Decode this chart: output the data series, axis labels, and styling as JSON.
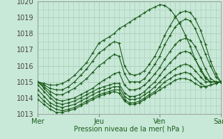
{
  "xlabel": "Pression niveau de la mer( hPa )",
  "xlim": [
    0,
    3
  ],
  "ylim": [
    1013,
    1020
  ],
  "yticks": [
    1013,
    1014,
    1015,
    1016,
    1017,
    1018,
    1019,
    1020
  ],
  "xtick_labels": [
    "Mer",
    "Jeu",
    "Ven",
    "Sam"
  ],
  "xtick_pos": [
    0,
    1,
    2,
    3
  ],
  "bg_color": "#c8e8d8",
  "grid_color": "#a8cdb8",
  "line_color": "#1a5c1a",
  "series": [
    {
      "x": [
        0.0,
        0.1,
        0.2,
        0.3,
        0.4,
        0.5,
        0.6,
        0.7,
        0.8,
        0.9,
        1.0,
        1.08,
        1.17,
        1.25,
        1.33,
        1.42,
        1.5,
        1.58,
        1.67,
        1.75,
        1.83,
        1.92,
        2.0,
        2.08,
        2.17,
        2.25,
        2.33,
        2.42,
        2.5,
        2.58,
        2.67,
        2.75,
        2.83,
        2.92,
        3.0
      ],
      "y": [
        1015.0,
        1014.9,
        1014.8,
        1014.8,
        1014.9,
        1015.1,
        1015.4,
        1015.8,
        1016.2,
        1016.8,
        1017.4,
        1017.6,
        1017.8,
        1018.0,
        1018.3,
        1018.5,
        1018.7,
        1018.9,
        1019.1,
        1019.3,
        1019.5,
        1019.65,
        1019.8,
        1019.75,
        1019.5,
        1019.1,
        1018.6,
        1017.9,
        1017.2,
        1016.4,
        1015.7,
        1015.2,
        1015.0,
        1015.0,
        1015.0
      ]
    },
    {
      "x": [
        0.0,
        0.1,
        0.2,
        0.3,
        0.4,
        0.5,
        0.6,
        0.7,
        0.8,
        0.9,
        1.0,
        1.08,
        1.17,
        1.25,
        1.33,
        1.42,
        1.5,
        1.58,
        1.67,
        1.75,
        1.83,
        1.92,
        2.0,
        2.08,
        2.17,
        2.25,
        2.33,
        2.42,
        2.5,
        2.58,
        2.67,
        2.75,
        2.83,
        2.92,
        3.0
      ],
      "y": [
        1015.0,
        1014.8,
        1014.6,
        1014.5,
        1014.5,
        1014.7,
        1015.0,
        1015.4,
        1015.8,
        1016.3,
        1016.8,
        1017.0,
        1017.3,
        1017.5,
        1017.4,
        1016.0,
        1015.5,
        1015.4,
        1015.5,
        1015.7,
        1016.1,
        1016.6,
        1017.2,
        1017.9,
        1018.5,
        1019.0,
        1019.3,
        1019.4,
        1019.3,
        1018.9,
        1018.2,
        1017.3,
        1016.3,
        1015.5,
        1015.0
      ]
    },
    {
      "x": [
        0.0,
        0.1,
        0.2,
        0.3,
        0.4,
        0.5,
        0.6,
        0.7,
        0.8,
        0.9,
        1.0,
        1.08,
        1.17,
        1.25,
        1.33,
        1.42,
        1.5,
        1.58,
        1.67,
        1.75,
        1.83,
        1.92,
        2.0,
        2.08,
        2.17,
        2.25,
        2.33,
        2.42,
        2.5,
        2.58,
        2.67,
        2.75,
        2.83,
        2.92,
        3.0
      ],
      "y": [
        1015.0,
        1014.7,
        1014.4,
        1014.2,
        1014.2,
        1014.4,
        1014.6,
        1014.9,
        1015.2,
        1015.6,
        1016.0,
        1016.2,
        1016.5,
        1016.7,
        1016.6,
        1015.5,
        1015.0,
        1015.0,
        1015.0,
        1015.2,
        1015.6,
        1016.1,
        1016.6,
        1017.3,
        1017.9,
        1018.4,
        1018.7,
        1018.9,
        1018.8,
        1018.3,
        1017.5,
        1016.7,
        1016.0,
        1015.3,
        1015.0
      ]
    },
    {
      "x": [
        0.0,
        0.1,
        0.2,
        0.3,
        0.4,
        0.5,
        0.6,
        0.7,
        0.8,
        0.9,
        1.0,
        1.08,
        1.17,
        1.25,
        1.33,
        1.42,
        1.5,
        1.58,
        1.67,
        1.75,
        1.83,
        1.92,
        2.0,
        2.08,
        2.17,
        2.25,
        2.33,
        2.42,
        2.5,
        2.58,
        2.67,
        2.75,
        2.83,
        2.92,
        3.0
      ],
      "y": [
        1015.0,
        1014.6,
        1014.2,
        1013.9,
        1013.8,
        1013.9,
        1014.0,
        1014.2,
        1014.4,
        1014.6,
        1014.9,
        1015.1,
        1015.3,
        1015.5,
        1015.6,
        1014.8,
        1014.5,
        1014.5,
        1014.6,
        1014.8,
        1015.1,
        1015.5,
        1015.9,
        1016.4,
        1016.9,
        1017.3,
        1017.6,
        1017.7,
        1017.6,
        1017.2,
        1016.5,
        1015.8,
        1015.2,
        1015.0,
        1015.0
      ]
    },
    {
      "x": [
        0.0,
        0.1,
        0.2,
        0.3,
        0.4,
        0.5,
        0.6,
        0.7,
        0.8,
        0.9,
        1.0,
        1.08,
        1.17,
        1.25,
        1.33,
        1.42,
        1.5,
        1.58,
        1.67,
        1.75,
        1.83,
        1.92,
        2.0,
        2.08,
        2.17,
        2.25,
        2.33,
        2.42,
        2.5,
        2.58,
        2.67,
        2.75,
        2.83,
        2.92,
        3.0
      ],
      "y": [
        1014.8,
        1014.4,
        1014.0,
        1013.7,
        1013.6,
        1013.7,
        1013.8,
        1014.0,
        1014.2,
        1014.4,
        1014.6,
        1014.7,
        1014.8,
        1014.9,
        1014.9,
        1014.3,
        1014.1,
        1014.1,
        1014.2,
        1014.4,
        1014.7,
        1015.0,
        1015.4,
        1015.8,
        1016.2,
        1016.5,
        1016.8,
        1016.9,
        1016.8,
        1016.4,
        1015.8,
        1015.3,
        1015.0,
        1015.0,
        1015.0
      ]
    },
    {
      "x": [
        0.0,
        0.1,
        0.2,
        0.3,
        0.4,
        0.5,
        0.6,
        0.7,
        0.8,
        0.9,
        1.0,
        1.08,
        1.17,
        1.25,
        1.33,
        1.42,
        1.5,
        1.58,
        1.67,
        1.75,
        1.83,
        1.92,
        2.0,
        2.08,
        2.17,
        2.25,
        2.33,
        2.42,
        2.5,
        2.58,
        2.67,
        2.75,
        2.83,
        2.92,
        3.0
      ],
      "y": [
        1014.5,
        1014.1,
        1013.7,
        1013.5,
        1013.4,
        1013.5,
        1013.6,
        1013.8,
        1014.0,
        1014.2,
        1014.4,
        1014.5,
        1014.6,
        1014.7,
        1014.7,
        1014.1,
        1013.9,
        1013.9,
        1014.0,
        1014.2,
        1014.4,
        1014.7,
        1015.0,
        1015.3,
        1015.6,
        1015.8,
        1016.0,
        1016.1,
        1016.0,
        1015.7,
        1015.3,
        1015.0,
        1015.0,
        1015.0,
        1015.0
      ]
    },
    {
      "x": [
        0.0,
        0.1,
        0.2,
        0.3,
        0.4,
        0.5,
        0.6,
        0.7,
        0.8,
        0.9,
        1.0,
        1.08,
        1.17,
        1.25,
        1.33,
        1.42,
        1.5,
        1.58,
        1.67,
        1.75,
        1.83,
        1.92,
        2.0,
        2.08,
        2.17,
        2.25,
        2.33,
        2.42,
        2.5,
        2.58,
        2.67,
        2.75,
        2.83,
        2.92,
        3.0
      ],
      "y": [
        1014.2,
        1013.8,
        1013.5,
        1013.3,
        1013.2,
        1013.3,
        1013.4,
        1013.6,
        1013.8,
        1014.0,
        1014.2,
        1014.3,
        1014.4,
        1014.5,
        1014.5,
        1013.9,
        1013.7,
        1013.7,
        1013.8,
        1014.0,
        1014.2,
        1014.4,
        1014.7,
        1015.0,
        1015.2,
        1015.4,
        1015.5,
        1015.6,
        1015.5,
        1015.2,
        1014.9,
        1014.7,
        1014.8,
        1014.9,
        1015.0
      ]
    },
    {
      "x": [
        0.0,
        0.1,
        0.2,
        0.3,
        0.4,
        0.5,
        0.6,
        0.7,
        0.8,
        0.9,
        1.0,
        1.08,
        1.17,
        1.25,
        1.33,
        1.42,
        1.5,
        1.58,
        1.67,
        1.75,
        1.83,
        1.92,
        2.0,
        2.08,
        2.17,
        2.25,
        2.33,
        2.42,
        2.5,
        2.58,
        2.67,
        2.75,
        2.83,
        2.92,
        3.0
      ],
      "y": [
        1013.9,
        1013.6,
        1013.3,
        1013.1,
        1013.1,
        1013.2,
        1013.3,
        1013.5,
        1013.7,
        1013.9,
        1014.1,
        1014.2,
        1014.3,
        1014.4,
        1014.3,
        1013.8,
        1013.6,
        1013.6,
        1013.7,
        1013.9,
        1014.1,
        1014.3,
        1014.5,
        1014.7,
        1014.9,
        1015.1,
        1015.2,
        1015.2,
        1015.1,
        1014.9,
        1014.7,
        1014.7,
        1014.8,
        1014.9,
        1015.0
      ]
    }
  ]
}
